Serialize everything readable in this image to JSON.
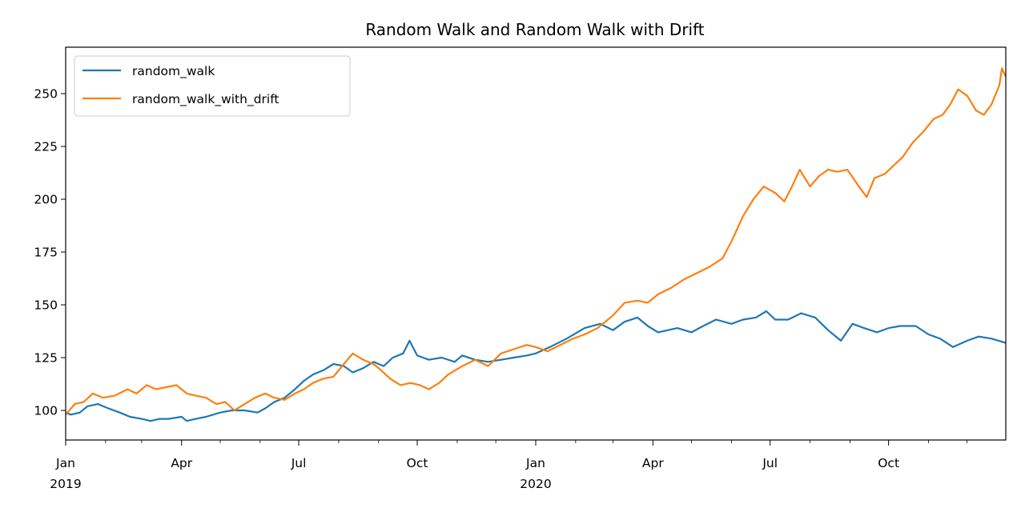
{
  "chart_data": {
    "type": "line",
    "title": "Random Walk and Random Walk with Drift",
    "xlabel": "",
    "ylabel": "",
    "xlim": [
      "2019-01-01",
      "2020-12-31"
    ],
    "ylim": [
      86,
      272
    ],
    "y_ticks": [
      100,
      125,
      150,
      175,
      200,
      225,
      250
    ],
    "x_major_ticks": [
      {
        "date": "2019-01-01",
        "label": "Jan",
        "year": "2019"
      },
      {
        "date": "2019-04-01",
        "label": "Apr",
        "year": ""
      },
      {
        "date": "2019-07-01",
        "label": "Jul",
        "year": ""
      },
      {
        "date": "2019-10-01",
        "label": "Oct",
        "year": ""
      },
      {
        "date": "2020-01-01",
        "label": "Jan",
        "year": "2020"
      },
      {
        "date": "2020-04-01",
        "label": "Apr",
        "year": ""
      },
      {
        "date": "2020-07-01",
        "label": "Jul",
        "year": ""
      },
      {
        "date": "2020-10-01",
        "label": "Oct",
        "year": ""
      }
    ],
    "x_minor_ticks": [
      "2019-02-01",
      "2019-03-01",
      "2019-05-01",
      "2019-06-01",
      "2019-08-01",
      "2019-09-01",
      "2019-11-01",
      "2019-12-01",
      "2020-02-01",
      "2020-03-01",
      "2020-05-01",
      "2020-06-01",
      "2020-08-01",
      "2020-09-01",
      "2020-11-01",
      "2020-12-01"
    ],
    "grid": false,
    "legend_position": "top-left",
    "series": [
      {
        "name": "random_walk",
        "color": "#1f77b4",
        "points": [
          [
            "2019-01-01",
            99
          ],
          [
            "2019-01-05",
            98
          ],
          [
            "2019-01-12",
            99
          ],
          [
            "2019-01-18",
            102
          ],
          [
            "2019-01-26",
            103
          ],
          [
            "2019-02-03",
            101
          ],
          [
            "2019-02-12",
            99
          ],
          [
            "2019-02-20",
            97
          ],
          [
            "2019-03-01",
            96
          ],
          [
            "2019-03-08",
            95
          ],
          [
            "2019-03-15",
            96
          ],
          [
            "2019-03-22",
            96
          ],
          [
            "2019-04-01",
            97
          ],
          [
            "2019-04-05",
            95
          ],
          [
            "2019-04-12",
            96
          ],
          [
            "2019-04-20",
            97
          ],
          [
            "2019-05-01",
            99
          ],
          [
            "2019-05-10",
            100
          ],
          [
            "2019-05-20",
            100
          ],
          [
            "2019-05-30",
            99
          ],
          [
            "2019-06-05",
            101
          ],
          [
            "2019-06-12",
            104
          ],
          [
            "2019-06-20",
            106
          ],
          [
            "2019-06-28",
            110
          ],
          [
            "2019-07-05",
            114
          ],
          [
            "2019-07-12",
            117
          ],
          [
            "2019-07-20",
            119
          ],
          [
            "2019-07-28",
            122
          ],
          [
            "2019-08-05",
            121
          ],
          [
            "2019-08-12",
            118
          ],
          [
            "2019-08-20",
            120
          ],
          [
            "2019-08-28",
            123
          ],
          [
            "2019-09-05",
            121
          ],
          [
            "2019-09-12",
            125
          ],
          [
            "2019-09-20",
            127
          ],
          [
            "2019-09-25",
            133
          ],
          [
            "2019-10-01",
            126
          ],
          [
            "2019-10-10",
            124
          ],
          [
            "2019-10-20",
            125
          ],
          [
            "2019-10-30",
            123
          ],
          [
            "2019-11-05",
            126
          ],
          [
            "2019-11-15",
            124
          ],
          [
            "2019-11-25",
            123
          ],
          [
            "2019-12-05",
            124
          ],
          [
            "2019-12-15",
            125
          ],
          [
            "2019-12-25",
            126
          ],
          [
            "2020-01-01",
            127
          ],
          [
            "2020-01-12",
            130
          ],
          [
            "2020-01-25",
            134
          ],
          [
            "2020-02-08",
            139
          ],
          [
            "2020-02-20",
            141
          ],
          [
            "2020-03-01",
            138
          ],
          [
            "2020-03-10",
            142
          ],
          [
            "2020-03-20",
            144
          ],
          [
            "2020-03-28",
            140
          ],
          [
            "2020-04-05",
            137
          ],
          [
            "2020-04-20",
            139
          ],
          [
            "2020-05-01",
            137
          ],
          [
            "2020-05-10",
            140
          ],
          [
            "2020-05-20",
            143
          ],
          [
            "2020-06-01",
            141
          ],
          [
            "2020-06-10",
            143
          ],
          [
            "2020-06-20",
            144
          ],
          [
            "2020-06-28",
            147
          ],
          [
            "2020-07-05",
            143
          ],
          [
            "2020-07-15",
            143
          ],
          [
            "2020-07-25",
            146
          ],
          [
            "2020-08-05",
            144
          ],
          [
            "2020-08-15",
            138
          ],
          [
            "2020-08-25",
            133
          ],
          [
            "2020-09-03",
            141
          ],
          [
            "2020-09-12",
            139
          ],
          [
            "2020-09-22",
            137
          ],
          [
            "2020-10-01",
            139
          ],
          [
            "2020-10-10",
            140
          ],
          [
            "2020-10-22",
            140
          ],
          [
            "2020-11-01",
            136
          ],
          [
            "2020-11-10",
            134
          ],
          [
            "2020-11-20",
            130
          ],
          [
            "2020-12-01",
            133
          ],
          [
            "2020-12-10",
            135
          ],
          [
            "2020-12-20",
            134
          ],
          [
            "2020-12-31",
            132
          ]
        ]
      },
      {
        "name": "random_walk_with_drift",
        "color": "#ff7f0e",
        "points": [
          [
            "2019-01-01",
            98
          ],
          [
            "2019-01-08",
            103
          ],
          [
            "2019-01-15",
            104
          ],
          [
            "2019-01-22",
            108
          ],
          [
            "2019-01-30",
            106
          ],
          [
            "2019-02-08",
            107
          ],
          [
            "2019-02-18",
            110
          ],
          [
            "2019-02-25",
            108
          ],
          [
            "2019-03-05",
            112
          ],
          [
            "2019-03-12",
            110
          ],
          [
            "2019-03-20",
            111
          ],
          [
            "2019-03-28",
            112
          ],
          [
            "2019-04-05",
            108
          ],
          [
            "2019-04-12",
            107
          ],
          [
            "2019-04-20",
            106
          ],
          [
            "2019-04-28",
            103
          ],
          [
            "2019-05-05",
            104
          ],
          [
            "2019-05-12",
            100
          ],
          [
            "2019-05-20",
            103
          ],
          [
            "2019-05-28",
            106
          ],
          [
            "2019-06-05",
            108
          ],
          [
            "2019-06-12",
            106
          ],
          [
            "2019-06-20",
            105
          ],
          [
            "2019-06-28",
            108
          ],
          [
            "2019-07-05",
            110
          ],
          [
            "2019-07-12",
            113
          ],
          [
            "2019-07-20",
            115
          ],
          [
            "2019-07-28",
            116
          ],
          [
            "2019-08-05",
            122
          ],
          [
            "2019-08-12",
            127
          ],
          [
            "2019-08-20",
            124
          ],
          [
            "2019-08-28",
            122
          ],
          [
            "2019-09-03",
            119
          ],
          [
            "2019-09-10",
            115
          ],
          [
            "2019-09-18",
            112
          ],
          [
            "2019-09-26",
            113
          ],
          [
            "2019-10-03",
            112
          ],
          [
            "2019-10-10",
            110
          ],
          [
            "2019-10-18",
            113
          ],
          [
            "2019-10-25",
            117
          ],
          [
            "2019-11-05",
            121
          ],
          [
            "2019-11-15",
            124
          ],
          [
            "2019-11-25",
            121
          ],
          [
            "2019-12-05",
            127
          ],
          [
            "2019-12-15",
            129
          ],
          [
            "2019-12-25",
            131
          ],
          [
            "2020-01-01",
            130
          ],
          [
            "2020-01-10",
            128
          ],
          [
            "2020-01-20",
            131
          ],
          [
            "2020-01-30",
            134
          ],
          [
            "2020-02-08",
            136
          ],
          [
            "2020-02-18",
            139
          ],
          [
            "2020-03-01",
            145
          ],
          [
            "2020-03-10",
            151
          ],
          [
            "2020-03-20",
            152
          ],
          [
            "2020-03-28",
            151
          ],
          [
            "2020-04-05",
            155
          ],
          [
            "2020-04-15",
            158
          ],
          [
            "2020-04-25",
            162
          ],
          [
            "2020-05-05",
            165
          ],
          [
            "2020-05-15",
            168
          ],
          [
            "2020-05-25",
            172
          ],
          [
            "2020-06-01",
            180
          ],
          [
            "2020-06-10",
            192
          ],
          [
            "2020-06-18",
            200
          ],
          [
            "2020-06-26",
            206
          ],
          [
            "2020-07-05",
            203
          ],
          [
            "2020-07-12",
            199
          ],
          [
            "2020-07-18",
            206
          ],
          [
            "2020-07-24",
            214
          ],
          [
            "2020-08-01",
            206
          ],
          [
            "2020-08-08",
            211
          ],
          [
            "2020-08-15",
            214
          ],
          [
            "2020-08-22",
            213
          ],
          [
            "2020-08-30",
            214
          ],
          [
            "2020-09-08",
            206
          ],
          [
            "2020-09-14",
            201
          ],
          [
            "2020-09-20",
            210
          ],
          [
            "2020-09-28",
            212
          ],
          [
            "2020-10-05",
            216
          ],
          [
            "2020-10-12",
            220
          ],
          [
            "2020-10-20",
            227
          ],
          [
            "2020-10-28",
            232
          ],
          [
            "2020-11-05",
            238
          ],
          [
            "2020-11-12",
            240
          ],
          [
            "2020-11-18",
            245
          ],
          [
            "2020-11-24",
            252
          ],
          [
            "2020-12-01",
            249
          ],
          [
            "2020-12-08",
            242
          ],
          [
            "2020-12-14",
            240
          ],
          [
            "2020-12-20",
            245
          ],
          [
            "2020-12-26",
            254
          ],
          [
            "2020-12-28",
            262
          ],
          [
            "2020-12-31",
            258
          ]
        ]
      }
    ]
  }
}
